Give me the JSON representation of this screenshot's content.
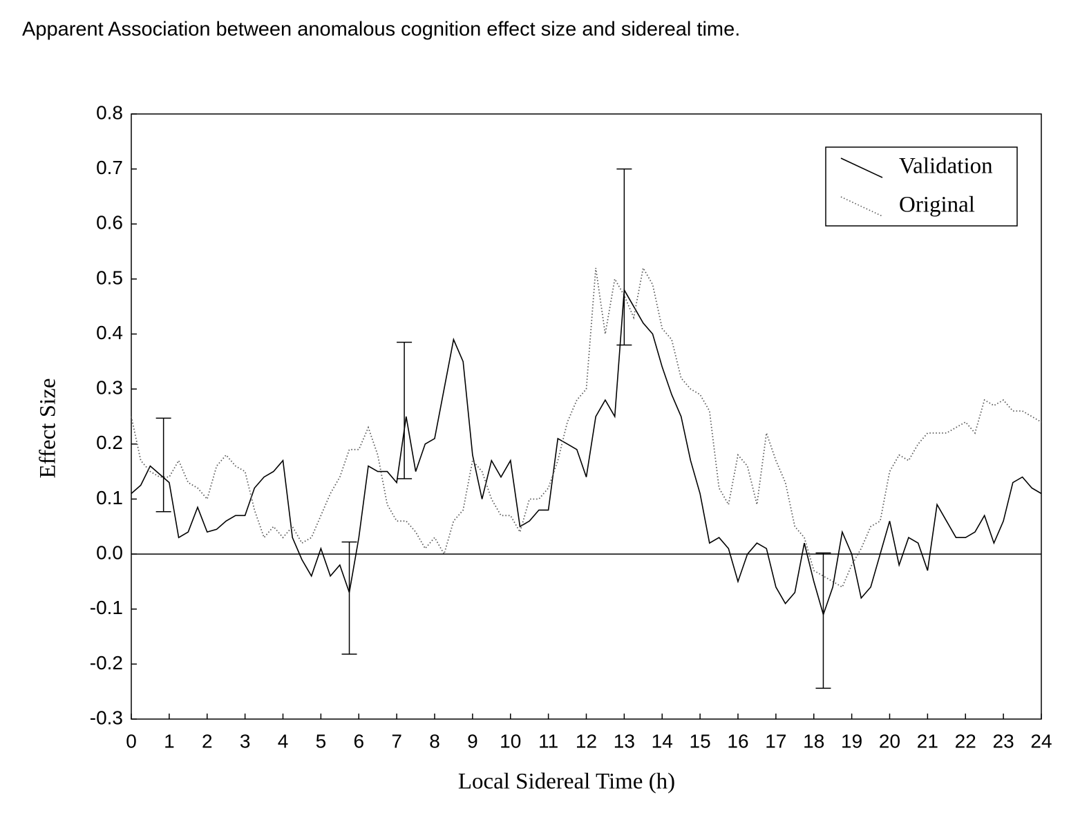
{
  "chart_data": {
    "type": "line",
    "title": "Apparent Association between anomalous cognition effect size and sidereal time.",
    "xlabel": "Local Sidereal Time (h)",
    "ylabel": "Effect Size",
    "x": [
      0,
      0.25,
      0.5,
      0.75,
      1,
      1.25,
      1.5,
      1.75,
      2,
      2.25,
      2.5,
      2.75,
      3,
      3.25,
      3.5,
      3.75,
      4,
      4.25,
      4.5,
      4.75,
      5,
      5.25,
      5.5,
      5.75,
      6,
      6.25,
      6.5,
      6.75,
      7,
      7.25,
      7.5,
      7.75,
      8,
      8.25,
      8.5,
      8.75,
      9,
      9.25,
      9.5,
      9.75,
      10,
      10.25,
      10.5,
      10.75,
      11,
      11.25,
      11.5,
      11.75,
      12,
      12.25,
      12.5,
      12.75,
      13,
      13.25,
      13.5,
      13.75,
      14,
      14.25,
      14.5,
      14.75,
      15,
      15.25,
      15.5,
      15.75,
      16,
      16.25,
      16.5,
      16.75,
      17,
      17.25,
      17.5,
      17.75,
      18,
      18.25,
      18.5,
      18.75,
      19,
      19.25,
      19.5,
      19.75,
      20,
      20.25,
      20.5,
      20.75,
      21,
      21.25,
      21.5,
      21.75,
      22,
      22.25,
      22.5,
      22.75,
      23,
      23.25,
      23.5,
      23.75,
      24
    ],
    "series": [
      {
        "name": "Validation",
        "color": "#000000",
        "style": "solid",
        "values": [
          0.11,
          0.125,
          0.16,
          0.145,
          0.13,
          0.03,
          0.04,
          0.085,
          0.04,
          0.045,
          0.06,
          0.07,
          0.07,
          0.12,
          0.14,
          0.15,
          0.17,
          0.03,
          -0.01,
          -0.04,
          0.01,
          -0.04,
          -0.02,
          -0.07,
          0.03,
          0.16,
          0.15,
          0.15,
          0.13,
          0.25,
          0.15,
          0.2,
          0.21,
          0.3,
          0.39,
          0.35,
          0.18,
          0.1,
          0.17,
          0.14,
          0.17,
          0.05,
          0.06,
          0.08,
          0.08,
          0.21,
          0.2,
          0.19,
          0.14,
          0.25,
          0.28,
          0.25,
          0.48,
          0.45,
          0.42,
          0.4,
          0.34,
          0.29,
          0.25,
          0.17,
          0.11,
          0.02,
          0.03,
          0.01,
          -0.05,
          0,
          0.02,
          0.01,
          -0.06,
          -0.09,
          -0.07,
          0.02,
          -0.05,
          -0.11,
          -0.06,
          0.04,
          0,
          -0.08,
          -0.06,
          0,
          0.06,
          -0.02,
          0.03,
          0.02,
          -0.03,
          0.09,
          0.06,
          0.03,
          0.03,
          0.04,
          0.07,
          0.02,
          0.06,
          0.13,
          0.14,
          0.12,
          0.11
        ]
      },
      {
        "name": "Original",
        "color": "#555555",
        "style": "dotted",
        "values": [
          0.25,
          0.17,
          0.15,
          0.14,
          0.14,
          0.17,
          0.13,
          0.12,
          0.1,
          0.16,
          0.18,
          0.16,
          0.15,
          0.08,
          0.03,
          0.05,
          0.03,
          0.05,
          0.02,
          0.03,
          0.07,
          0.11,
          0.14,
          0.19,
          0.19,
          0.23,
          0.18,
          0.09,
          0.06,
          0.06,
          0.04,
          0.01,
          0.03,
          0,
          0.06,
          0.08,
          0.17,
          0.15,
          0.1,
          0.07,
          0.07,
          0.04,
          0.1,
          0.1,
          0.12,
          0.17,
          0.24,
          0.28,
          0.3,
          0.52,
          0.4,
          0.5,
          0.47,
          0.43,
          0.52,
          0.49,
          0.41,
          0.39,
          0.32,
          0.3,
          0.29,
          0.26,
          0.12,
          0.09,
          0.18,
          0.16,
          0.09,
          0.22,
          0.17,
          0.13,
          0.05,
          0.03,
          -0.03,
          -0.04,
          -0.05,
          -0.06,
          -0.02,
          0.01,
          0.05,
          0.06,
          0.15,
          0.18,
          0.17,
          0.2,
          0.22,
          0.22,
          0.22,
          0.23,
          0.24,
          0.22,
          0.28,
          0.27,
          0.28,
          0.26,
          0.26,
          0.25,
          0.24
        ]
      }
    ],
    "error_bars": [
      {
        "x": 0.85,
        "low": 0.077,
        "high": 0.247
      },
      {
        "x": 5.75,
        "low": -0.182,
        "high": 0.022
      },
      {
        "x": 7.2,
        "low": 0.137,
        "high": 0.385
      },
      {
        "x": 13.0,
        "low": 0.38,
        "high": 0.7
      },
      {
        "x": 18.25,
        "low": -0.244,
        "high": 0.002
      }
    ],
    "xlim": [
      0,
      24
    ],
    "xticks": [
      0,
      1,
      2,
      3,
      4,
      5,
      6,
      7,
      8,
      9,
      10,
      11,
      12,
      13,
      14,
      15,
      16,
      17,
      18,
      19,
      20,
      21,
      22,
      23,
      24
    ],
    "ylim": [
      -0.3,
      0.8
    ],
    "yticks": [
      -0.3,
      -0.2,
      -0.1,
      {
        "value": 0,
        "label": "0.0"
      },
      0.1,
      0.2,
      0.3,
      0.4,
      0.5,
      0.6,
      0.7,
      0.8
    ],
    "legend": "upper right",
    "grid": false
  }
}
